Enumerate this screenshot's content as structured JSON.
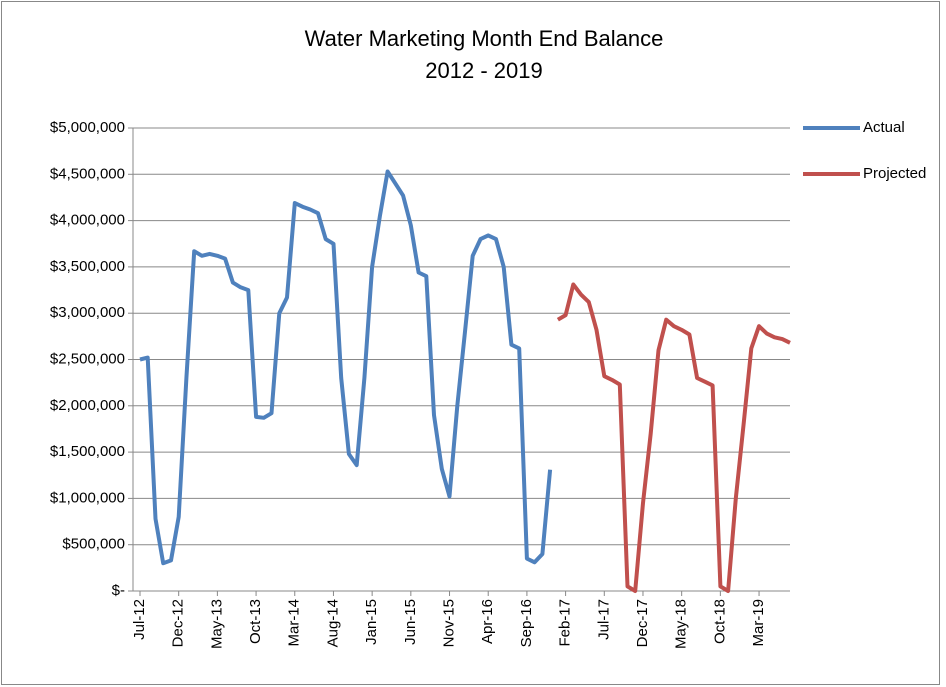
{
  "chart_data": {
    "type": "line",
    "title": "Water Marketing Month End Balance",
    "subtitle": "2012 - 2019",
    "categories": [
      "Jul-12",
      null,
      null,
      null,
      null,
      "Dec-12",
      null,
      null,
      null,
      null,
      "May-13",
      null,
      null,
      null,
      null,
      "Oct-13",
      null,
      null,
      null,
      null,
      "Mar-14",
      null,
      null,
      null,
      null,
      "Aug-14",
      null,
      null,
      null,
      null,
      "Jan-15",
      null,
      null,
      null,
      null,
      "Jun-15",
      null,
      null,
      null,
      null,
      "Nov-15",
      null,
      null,
      null,
      null,
      "Apr-16",
      null,
      null,
      null,
      null,
      "Sep-16",
      null,
      null,
      null,
      null,
      "Feb-17",
      null,
      null,
      null,
      null,
      "Jul-17",
      null,
      null,
      null,
      null,
      "Dec-17",
      null,
      null,
      null,
      null,
      "May-18",
      null,
      null,
      null,
      null,
      "Oct-18",
      null,
      null,
      null,
      null,
      "Mar-19",
      null,
      null,
      null,
      null
    ],
    "series": [
      {
        "name": "Actual",
        "color": "#4f81bd",
        "values": [
          2500000,
          2520000,
          780000,
          300000,
          330000,
          800000,
          2300000,
          3670000,
          3620000,
          3640000,
          3620000,
          3590000,
          3330000,
          3280000,
          3250000,
          1880000,
          1870000,
          1920000,
          3000000,
          3170000,
          4190000,
          4150000,
          4120000,
          4080000,
          3800000,
          3750000,
          2300000,
          1480000,
          1360000,
          2300000,
          3500000,
          4050000,
          4530000,
          4400000,
          4270000,
          3950000,
          3440000,
          3400000,
          1900000,
          1320000,
          1020000,
          2000000,
          2800000,
          3620000,
          3800000,
          3840000,
          3800000,
          3500000,
          2660000,
          2620000,
          350000,
          310000,
          400000,
          1310000,
          null,
          null,
          null,
          null,
          null,
          null,
          null,
          null,
          null,
          null,
          null,
          null,
          null,
          null,
          null,
          null,
          null,
          null,
          null,
          null,
          null,
          null,
          null,
          null,
          null,
          null,
          null,
          null,
          null,
          null,
          null
        ]
      },
      {
        "name": "Projected",
        "color": "#c0504d",
        "values": [
          null,
          null,
          null,
          null,
          null,
          null,
          null,
          null,
          null,
          null,
          null,
          null,
          null,
          null,
          null,
          null,
          null,
          null,
          null,
          null,
          null,
          null,
          null,
          null,
          null,
          null,
          null,
          null,
          null,
          null,
          null,
          null,
          null,
          null,
          null,
          null,
          null,
          null,
          null,
          null,
          null,
          null,
          null,
          null,
          null,
          null,
          null,
          null,
          null,
          null,
          null,
          null,
          null,
          null,
          2930000,
          2980000,
          3310000,
          3200000,
          3120000,
          2820000,
          2320000,
          2280000,
          2230000,
          50000,
          0,
          950000,
          1700000,
          2600000,
          2930000,
          2860000,
          2820000,
          2770000,
          2300000,
          2260000,
          2220000,
          50000,
          0,
          1000000,
          1800000,
          2620000,
          2860000,
          2780000,
          2740000,
          2720000,
          2680000
        ]
      }
    ],
    "ylim": [
      0,
      5000000
    ],
    "yticks": [
      {
        "value": 0,
        "label": "$-"
      },
      {
        "value": 500000,
        "label": "$500,000"
      },
      {
        "value": 1000000,
        "label": "$1,000,000"
      },
      {
        "value": 1500000,
        "label": "$1,500,000"
      },
      {
        "value": 2000000,
        "label": "$2,000,000"
      },
      {
        "value": 2500000,
        "label": "$2,500,000"
      },
      {
        "value": 3000000,
        "label": "$3,000,000"
      },
      {
        "value": 3500000,
        "label": "$3,500,000"
      },
      {
        "value": 4000000,
        "label": "$4,000,000"
      },
      {
        "value": 4500000,
        "label": "$4,500,000"
      },
      {
        "value": 5000000,
        "label": "$5,000,000"
      }
    ],
    "grid": true,
    "legend": "right"
  }
}
